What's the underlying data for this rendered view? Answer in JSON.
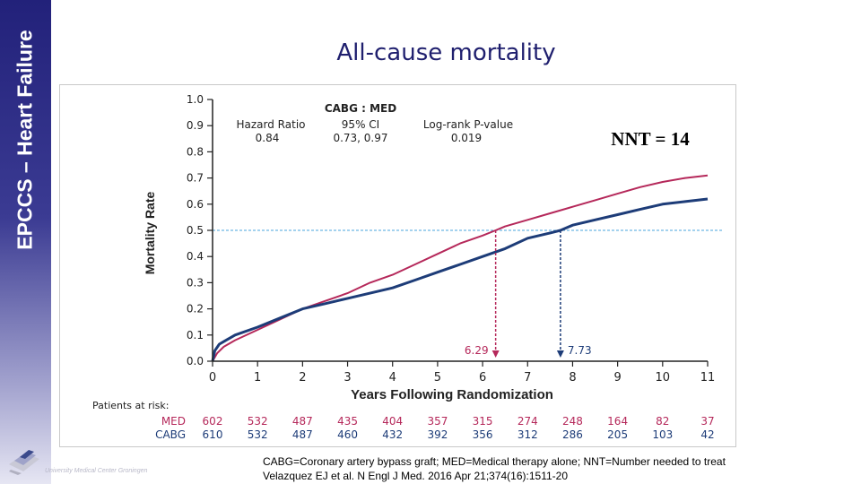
{
  "slide": {
    "title": "All-cause mortality",
    "sidebar_label": "EPCCS – Heart Failure",
    "logo_text": "University Medical Center Groningen",
    "footnotes": [
      "CABG=Coronary  artery bypass graft; MED=Medical therapy alone; NNT=Number  needed to treat",
      "Velazquez EJ et al. N Engl J Med. 2016 Apr 21;374(16):1511-20"
    ]
  },
  "colors": {
    "med": "#b5285a",
    "cabg": "#1d3c78",
    "reference": "#4aa6dc",
    "title": "#1f1f6e",
    "axis": "#222222"
  },
  "chart_data": {
    "type": "line",
    "xlabel": "Years Following Randomization",
    "ylabel": "Mortality Rate",
    "xlim": [
      0,
      11
    ],
    "ylim": [
      0,
      1.0
    ],
    "x_ticks": [
      "0",
      "1",
      "2",
      "3",
      "4",
      "5",
      "6",
      "7",
      "8",
      "9",
      "10",
      "11"
    ],
    "y_ticks": [
      "0.0",
      "0.1",
      "0.2",
      "0.3",
      "0.4",
      "0.5",
      "0.6",
      "0.7",
      "0.8",
      "0.9",
      "1.0"
    ],
    "series": [
      {
        "name": "MED",
        "x": [
          0,
          0.1,
          0.25,
          0.5,
          1,
          1.5,
          2,
          2.5,
          3,
          3.5,
          4,
          4.5,
          5,
          5.5,
          6,
          6.29,
          6.5,
          7,
          7.5,
          8,
          8.5,
          9,
          9.5,
          10,
          10.5,
          11
        ],
        "y": [
          0,
          0.03,
          0.055,
          0.08,
          0.12,
          0.16,
          0.2,
          0.23,
          0.26,
          0.3,
          0.33,
          0.37,
          0.41,
          0.45,
          0.48,
          0.5,
          0.515,
          0.54,
          0.565,
          0.59,
          0.615,
          0.64,
          0.665,
          0.685,
          0.7,
          0.71
        ]
      },
      {
        "name": "CABG",
        "x": [
          0,
          0.05,
          0.15,
          0.3,
          0.5,
          1,
          1.5,
          2,
          2.5,
          3,
          3.5,
          4,
          4.5,
          5,
          5.5,
          6,
          6.5,
          7,
          7.5,
          7.73,
          8,
          8.5,
          9,
          9.5,
          10,
          10.5,
          11
        ],
        "y": [
          0,
          0.04,
          0.065,
          0.08,
          0.1,
          0.13,
          0.165,
          0.2,
          0.22,
          0.24,
          0.26,
          0.28,
          0.31,
          0.34,
          0.37,
          0.4,
          0.43,
          0.47,
          0.49,
          0.5,
          0.52,
          0.54,
          0.56,
          0.58,
          0.6,
          0.61,
          0.62
        ]
      }
    ],
    "reference_y": 0.5,
    "markers": [
      {
        "series": "MED",
        "x": 6.29,
        "label": "6.29"
      },
      {
        "series": "CABG",
        "x": 7.73,
        "label": "7.73"
      }
    ],
    "stats_box": {
      "header": "CABG : MED",
      "columns": [
        {
          "label": "Hazard Ratio",
          "value": "0.84"
        },
        {
          "label": "95% CI",
          "value": "0.73, 0.97"
        },
        {
          "label": "Log-rank P-value",
          "value": "0.019"
        }
      ]
    },
    "annotation": "NNT = 14",
    "risk_table": {
      "title": "Patients at risk:",
      "rows": [
        {
          "name": "MED",
          "values": [
            "602",
            "532",
            "487",
            "435",
            "404",
            "357",
            "315",
            "274",
            "248",
            "164",
            "82",
            "37"
          ]
        },
        {
          "name": "CABG",
          "values": [
            "610",
            "532",
            "487",
            "460",
            "432",
            "392",
            "356",
            "312",
            "286",
            "205",
            "103",
            "42"
          ]
        }
      ]
    }
  }
}
